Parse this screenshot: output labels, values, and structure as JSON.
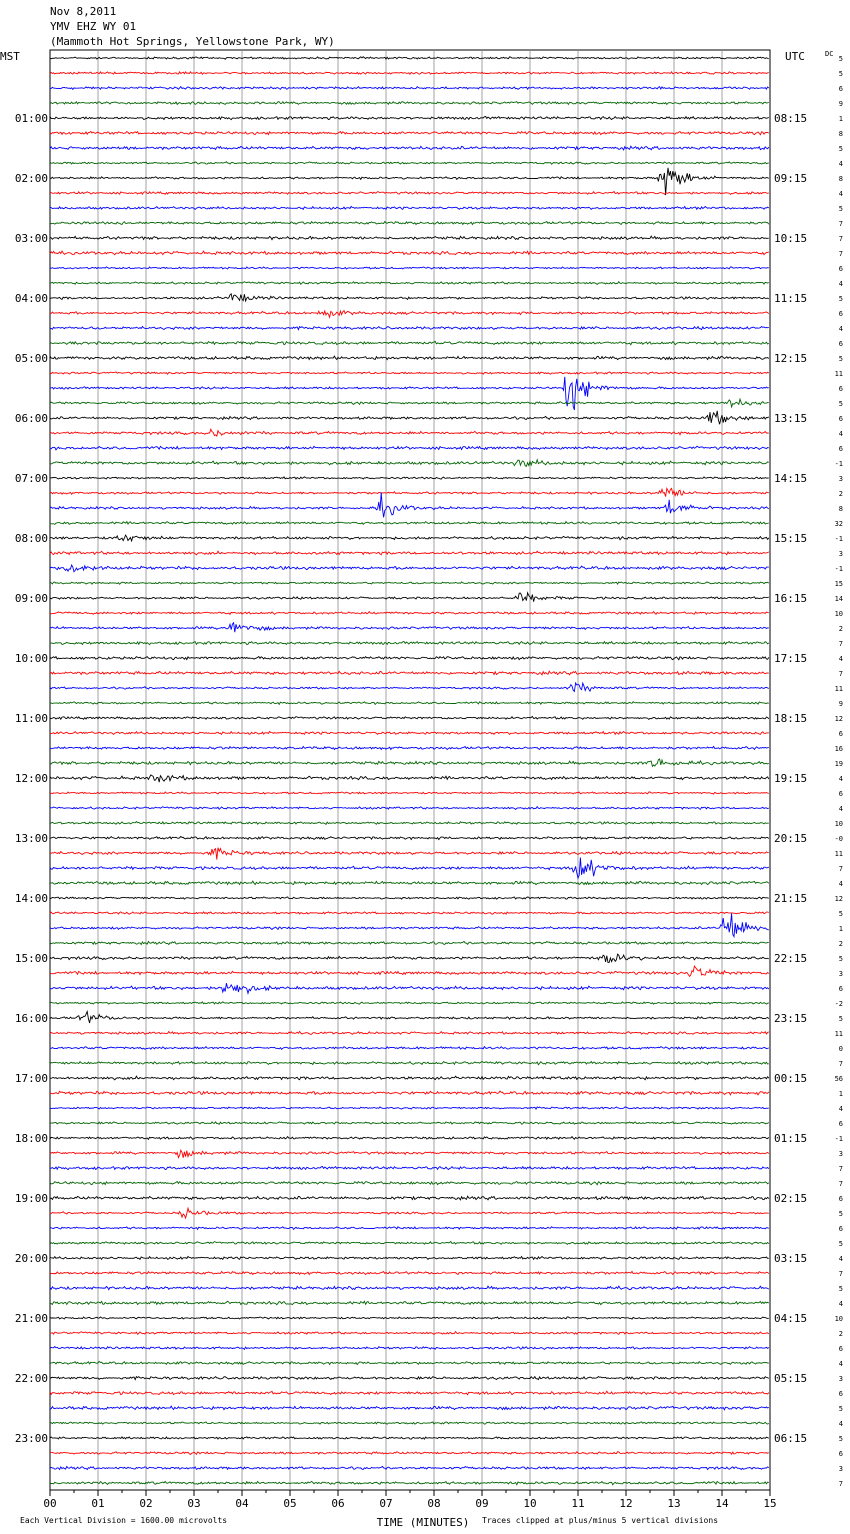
{
  "header": {
    "date": "Nov 8,2011",
    "station": "YMV EHZ WY 01",
    "location": "(Mammoth Hot Springs, Yellowstone Park, WY)"
  },
  "chart_data": {
    "type": "seismogram",
    "left_axis_label": "MST",
    "right_axis_label": "UTC",
    "dc_label": "DC",
    "hour_labels_local": [
      "01:00",
      "02:00",
      "03:00",
      "04:00",
      "05:00",
      "06:00",
      "07:00",
      "08:00",
      "09:00",
      "10:00",
      "11:00",
      "12:00",
      "13:00",
      "14:00",
      "15:00",
      "16:00",
      "17:00",
      "18:00",
      "19:00",
      "20:00",
      "21:00",
      "22:00",
      "23:00"
    ],
    "hour_labels_utc": [
      "08:15",
      "09:15",
      "10:15",
      "11:15",
      "12:15",
      "13:15",
      "14:15",
      "15:15",
      "16:15",
      "17:15",
      "18:15",
      "19:15",
      "20:15",
      "21:15",
      "22:15",
      "23:15",
      "00:15",
      "01:15",
      "02:15",
      "03:15",
      "04:15",
      "05:15",
      "06:15"
    ],
    "x_ticks": [
      "00",
      "01",
      "02",
      "03",
      "04",
      "05",
      "06",
      "07",
      "08",
      "09",
      "10",
      "11",
      "12",
      "13",
      "14",
      "15"
    ],
    "xlim": [
      0,
      15
    ],
    "xlabel": "TIME (MINUTES)",
    "footer_left": "Each Vertical Division = 1600.00 microvolts",
    "footer_right": "Traces clipped at plus/minus 5 vertical divisions",
    "trace_colors": [
      "#000000",
      "#ff0000",
      "#0000ff",
      "#006400"
    ],
    "dc_offsets": [
      "5",
      "5",
      "6",
      "9",
      "1",
      "8",
      "5",
      "4",
      "8",
      "4",
      "5",
      "7",
      "7",
      "7",
      "6",
      "4",
      "5",
      "6",
      "4",
      "6",
      "5",
      "11",
      "6",
      "5",
      "6",
      "4",
      "6",
      "-1",
      "3",
      "2",
      "8",
      "32",
      "-1",
      "3",
      "-1",
      "15",
      "14",
      "10",
      "2",
      "7",
      "4",
      "7",
      "11",
      "9",
      "12",
      "6",
      "16",
      "19",
      "4",
      "6",
      "4",
      "10",
      "-0",
      "11",
      "7",
      "4",
      "12",
      "5",
      "1",
      "2",
      "5",
      "3",
      "6",
      "-2",
      "5",
      "11",
      "0",
      "7",
      "56",
      "1",
      "4",
      "6",
      "-1",
      "3",
      "7",
      "7",
      "6",
      "5",
      "6",
      "5",
      "4",
      "7",
      "5",
      "4",
      "10",
      "2",
      "6",
      "4",
      "3",
      "6",
      "5",
      "4",
      "5",
      "6",
      "3",
      "7"
    ],
    "events": [
      {
        "trace": 8,
        "minute": 12.8,
        "amplitude": 2.4
      },
      {
        "trace": 16,
        "minute": 3.8,
        "amplitude": 0.7
      },
      {
        "trace": 17,
        "minute": 5.7,
        "amplitude": 0.5
      },
      {
        "trace": 22,
        "minute": 10.8,
        "amplitude": 3.2
      },
      {
        "trace": 23,
        "minute": 14.2,
        "amplitude": 0.5
      },
      {
        "trace": 24,
        "minute": 13.8,
        "amplitude": 1.0
      },
      {
        "trace": 25,
        "minute": 3.4,
        "amplitude": 0.5
      },
      {
        "trace": 27,
        "minute": 9.8,
        "amplitude": 0.5
      },
      {
        "trace": 29,
        "minute": 12.8,
        "amplitude": 0.9
      },
      {
        "trace": 30,
        "minute": 6.9,
        "amplitude": 1.2
      },
      {
        "trace": 30,
        "minute": 12.9,
        "amplitude": 1.0
      },
      {
        "trace": 32,
        "minute": 1.5,
        "amplitude": 0.6
      },
      {
        "trace": 34,
        "minute": 0.4,
        "amplitude": 0.8
      },
      {
        "trace": 36,
        "minute": 9.8,
        "amplitude": 0.8
      },
      {
        "trace": 38,
        "minute": 3.8,
        "amplitude": 1.0
      },
      {
        "trace": 42,
        "minute": 10.9,
        "amplitude": 0.8
      },
      {
        "trace": 47,
        "minute": 12.6,
        "amplitude": 0.7
      },
      {
        "trace": 48,
        "minute": 2.2,
        "amplitude": 0.6
      },
      {
        "trace": 53,
        "minute": 3.4,
        "amplitude": 0.6
      },
      {
        "trace": 54,
        "minute": 11.0,
        "amplitude": 2.0
      },
      {
        "trace": 58,
        "minute": 14.1,
        "amplitude": 2.8
      },
      {
        "trace": 60,
        "minute": 11.6,
        "amplitude": 0.8
      },
      {
        "trace": 61,
        "minute": 13.4,
        "amplitude": 0.9
      },
      {
        "trace": 62,
        "minute": 3.7,
        "amplitude": 1.4
      },
      {
        "trace": 64,
        "minute": 0.7,
        "amplitude": 0.8
      },
      {
        "trace": 73,
        "minute": 2.7,
        "amplitude": 0.5
      },
      {
        "trace": 77,
        "minute": 2.8,
        "amplitude": 0.6
      }
    ]
  }
}
